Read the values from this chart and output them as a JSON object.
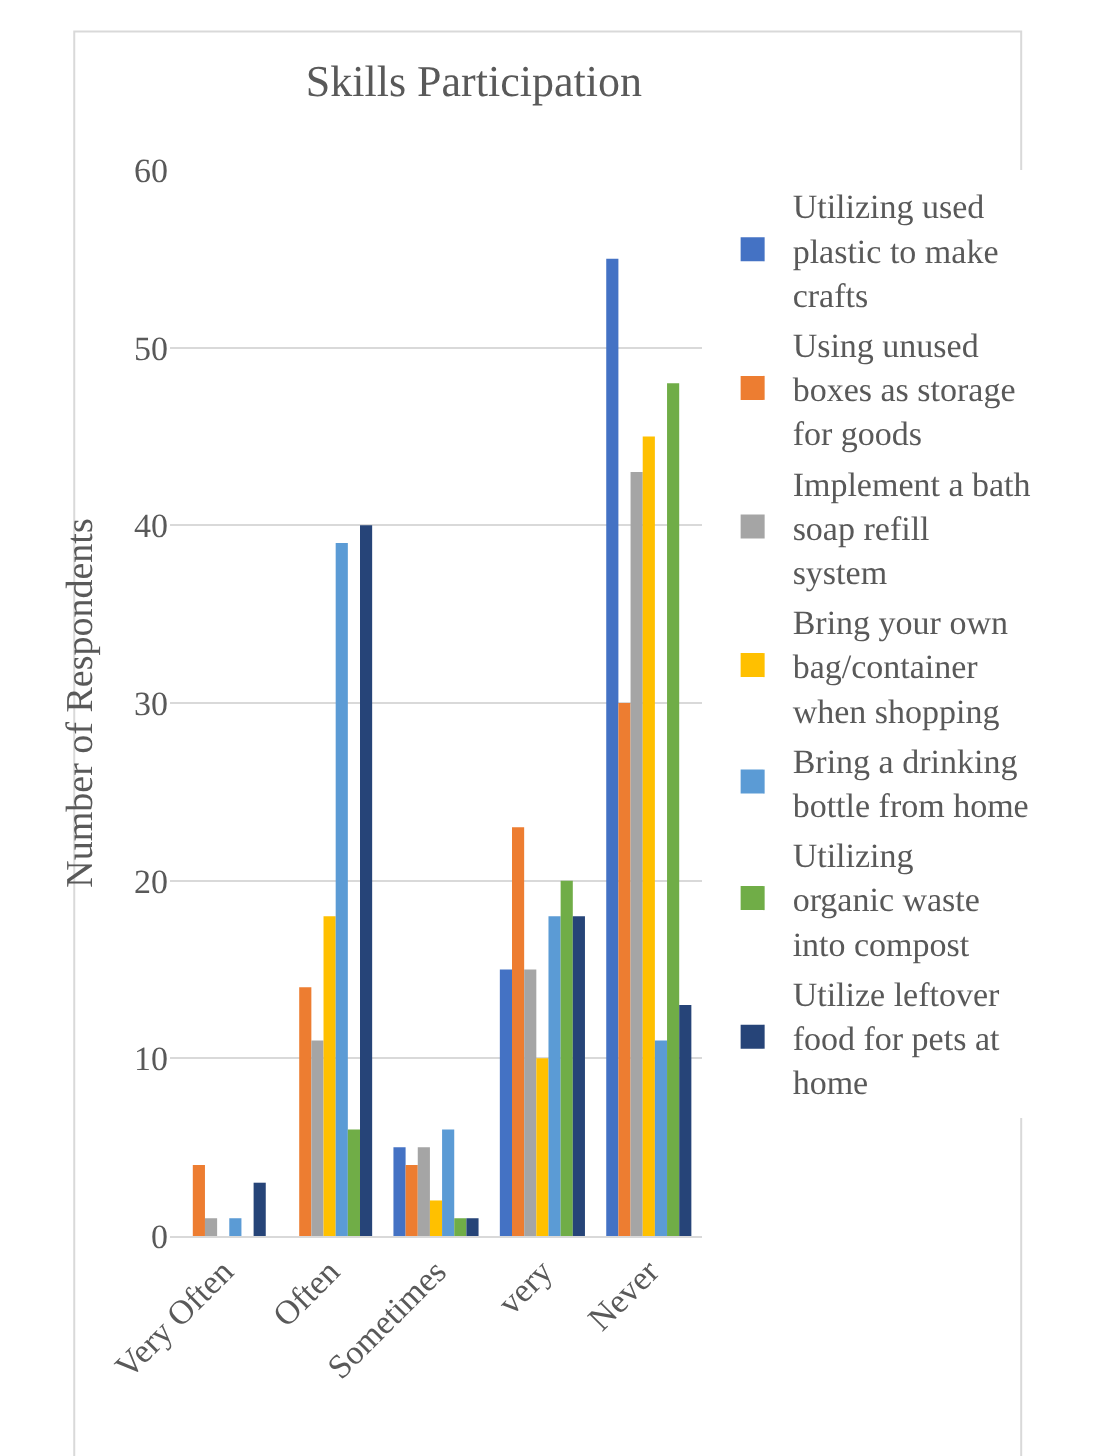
{
  "chart_data": {
    "type": "bar",
    "title": "Skills Participation",
    "ylabel": "Number of Respondents",
    "categories": [
      "Very Often",
      "Often",
      "Sometimes",
      "very",
      "Never"
    ],
    "series": [
      {
        "name": "Utilizing used plastic to make crafts",
        "color": "#4472c4",
        "values": [
          0,
          0,
          5,
          15,
          55
        ]
      },
      {
        "name": "Using unused boxes as storage for goods",
        "color": "#ed7d31",
        "values": [
          4,
          14,
          4,
          23,
          30
        ]
      },
      {
        "name": "Implement a bath soap refill system",
        "color": "#a5a5a5",
        "values": [
          1,
          11,
          5,
          15,
          43
        ]
      },
      {
        "name": "Bring your own bag/container when shopping",
        "color": "#ffc000",
        "values": [
          0,
          18,
          2,
          10,
          45
        ]
      },
      {
        "name": "Bring a drinking bottle from home",
        "color": "#5b9bd5",
        "values": [
          1,
          39,
          6,
          18,
          11
        ]
      },
      {
        "name": "Utilizing organic waste into compost",
        "color": "#70ad47",
        "values": [
          0,
          6,
          1,
          20,
          48
        ]
      },
      {
        "name": "Utilize leftover food for pets at home",
        "color": "#264478",
        "values": [
          3,
          40,
          1,
          18,
          13
        ]
      }
    ],
    "ylim": [
      0,
      60
    ],
    "yticks": [
      0,
      10,
      20,
      30,
      40,
      50,
      60
    ],
    "grid": "y",
    "legend": "right"
  }
}
